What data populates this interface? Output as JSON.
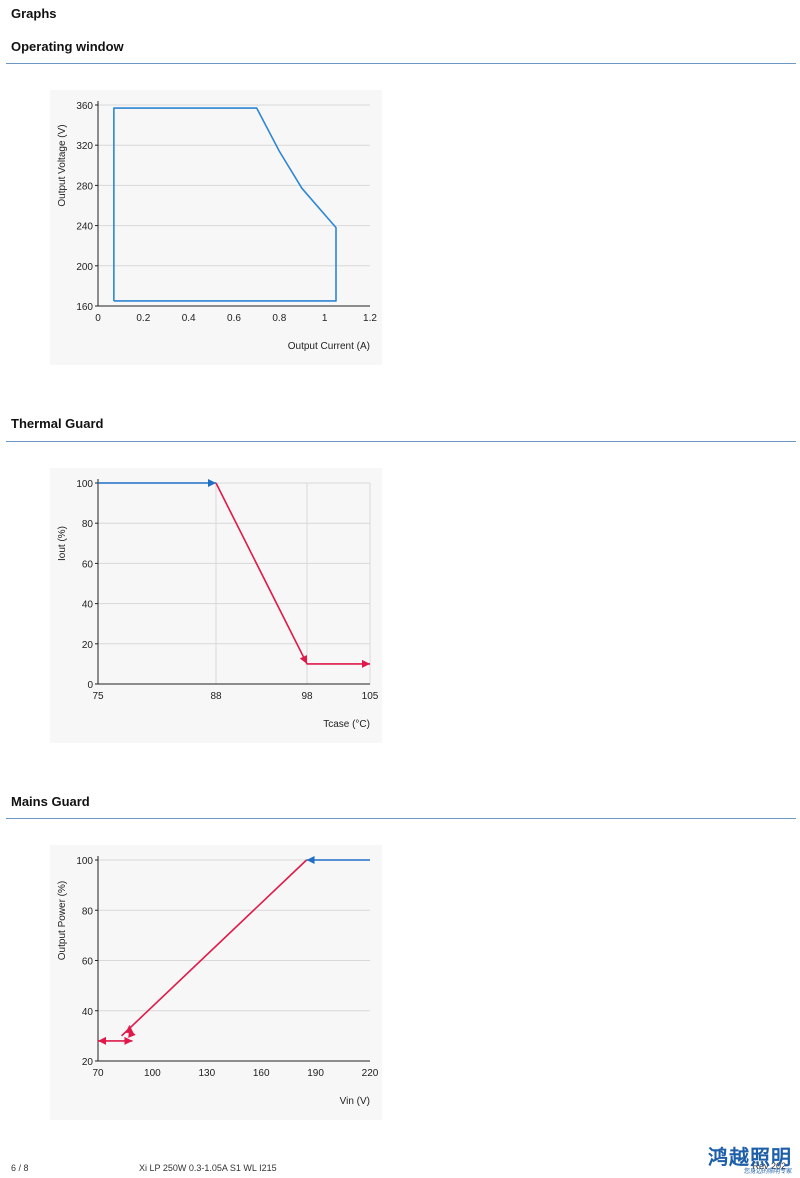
{
  "page": {
    "title": "Graphs",
    "footer": {
      "page_number": "6 / 8",
      "product": "Xi LP 250W 0.3-1.05A S1 WL I215",
      "revision": "Rev 202",
      "logo_text": "鸿越照明",
      "logo_subtext": "您身边的照明专家"
    }
  },
  "sections": [
    {
      "heading": "Operating window"
    },
    {
      "heading": "Thermal Guard"
    },
    {
      "heading": "Mains Guard"
    }
  ],
  "chart_data": [
    {
      "type": "line",
      "xlabel": "Output Current (A)",
      "ylabel": "Output Voltage (V)",
      "xlim": [
        0,
        1.2
      ],
      "ylim": [
        160,
        360
      ],
      "xticks": [
        "0",
        "0.2",
        "0.4",
        "0.6",
        "0.8",
        "1",
        "1.2"
      ],
      "yticks": [
        "160",
        "200",
        "240",
        "280",
        "320",
        "360"
      ],
      "grid": "horizontal",
      "series": [
        {
          "color": "#2e86d4",
          "points": [
            [
              0.07,
              165
            ],
            [
              0.07,
              357
            ],
            [
              0.7,
              357
            ],
            [
              0.8,
              314
            ],
            [
              0.9,
              277
            ],
            [
              1.05,
              238
            ],
            [
              1.05,
              165
            ],
            [
              0.07,
              165
            ]
          ]
        }
      ]
    },
    {
      "type": "line",
      "xlabel": "Tcase (°C)",
      "ylabel": "Iout (%)",
      "xlim": [
        75,
        105
      ],
      "ylim": [
        0,
        100
      ],
      "xticks": [
        "75",
        "88",
        "98",
        "105"
      ],
      "yticks": [
        "0",
        "20",
        "40",
        "60",
        "80",
        "100"
      ],
      "grid": "both",
      "series": [
        {
          "color": "#1f6fc5",
          "points": [
            [
              75,
              100
            ],
            [
              88,
              100
            ]
          ]
        },
        {
          "color": "#e0194a",
          "points": [
            [
              88,
              100
            ],
            [
              98,
              10
            ],
            [
              105,
              10
            ]
          ]
        }
      ]
    },
    {
      "type": "line",
      "xlabel": "Vin (V)",
      "ylabel": "Output Power (%)",
      "xlim": [
        70,
        220
      ],
      "ylim": [
        20,
        100
      ],
      "xticks": [
        "70",
        "100",
        "130",
        "160",
        "190",
        "220"
      ],
      "yticks": [
        "20",
        "40",
        "60",
        "80",
        "100"
      ],
      "grid": "horizontal",
      "series": [
        {
          "color": "#1f6fc5",
          "points": [
            [
              220,
              100
            ],
            [
              185,
              100
            ]
          ]
        },
        {
          "color": "#e0194a",
          "points": [
            [
              185,
              100
            ],
            [
              83,
              30
            ]
          ]
        },
        {
          "color": "#e0194a",
          "points": [
            [
              70,
              28
            ],
            [
              89,
              28
            ]
          ]
        }
      ]
    }
  ]
}
